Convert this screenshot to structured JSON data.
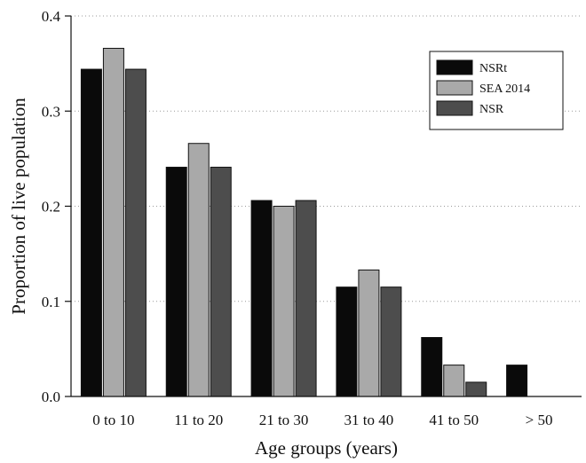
{
  "chart_data": {
    "type": "bar",
    "title": "",
    "xlabel": "Age groups (years)",
    "ylabel": "Proportion of live population",
    "categories": [
      "0 to 10",
      "11 to 20",
      "21 to 30",
      "31 to 40",
      "41 to 50",
      "> 50"
    ],
    "ylim": [
      0,
      0.4
    ],
    "yticks": [
      "0.0",
      "0.1",
      "0.2",
      "0.3",
      "0.4"
    ],
    "grid": "horizontal dotted",
    "legend_position": "top-right",
    "series": [
      {
        "name": "NSRt",
        "color": "#0a0a0a",
        "values": [
          0.344,
          0.241,
          0.206,
          0.115,
          0.062,
          0.033
        ]
      },
      {
        "name": "SEA 2014",
        "color": "#a9a9a9",
        "values": [
          0.366,
          0.266,
          0.2,
          0.133,
          0.033,
          0.0
        ]
      },
      {
        "name": "NSR",
        "color": "#4d4d4d",
        "values": [
          0.344,
          0.241,
          0.206,
          0.115,
          0.015,
          0.0
        ]
      }
    ]
  }
}
